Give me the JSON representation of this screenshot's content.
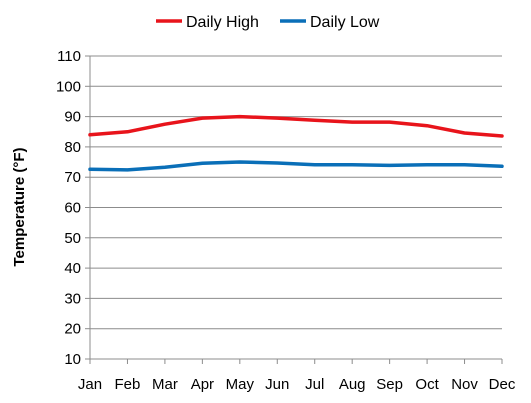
{
  "chart_data": {
    "type": "line",
    "title": "",
    "xlabel": "",
    "ylabel": "Temperature (°F)",
    "ylim": [
      10,
      110
    ],
    "yticks": [
      10,
      20,
      30,
      40,
      50,
      60,
      70,
      80,
      90,
      100,
      110
    ],
    "grid": true,
    "legend_position": "top",
    "categories": [
      "Jan",
      "Feb",
      "Mar",
      "Apr",
      "May",
      "Jun",
      "Jul",
      "Aug",
      "Sep",
      "Oct",
      "Nov",
      "Dec"
    ],
    "series": [
      {
        "name": "Daily High",
        "color": "#e8141b",
        "values": [
          84,
          85,
          87.5,
          89.5,
          90,
          89.5,
          88.8,
          88.2,
          88.2,
          87,
          84.6,
          83.6
        ]
      },
      {
        "name": "Daily Low",
        "color": "#0a6fb8",
        "values": [
          72.6,
          72.4,
          73.3,
          74.6,
          75,
          74.7,
          74.1,
          74.1,
          73.9,
          74.1,
          74.1,
          73.6
        ]
      }
    ]
  }
}
